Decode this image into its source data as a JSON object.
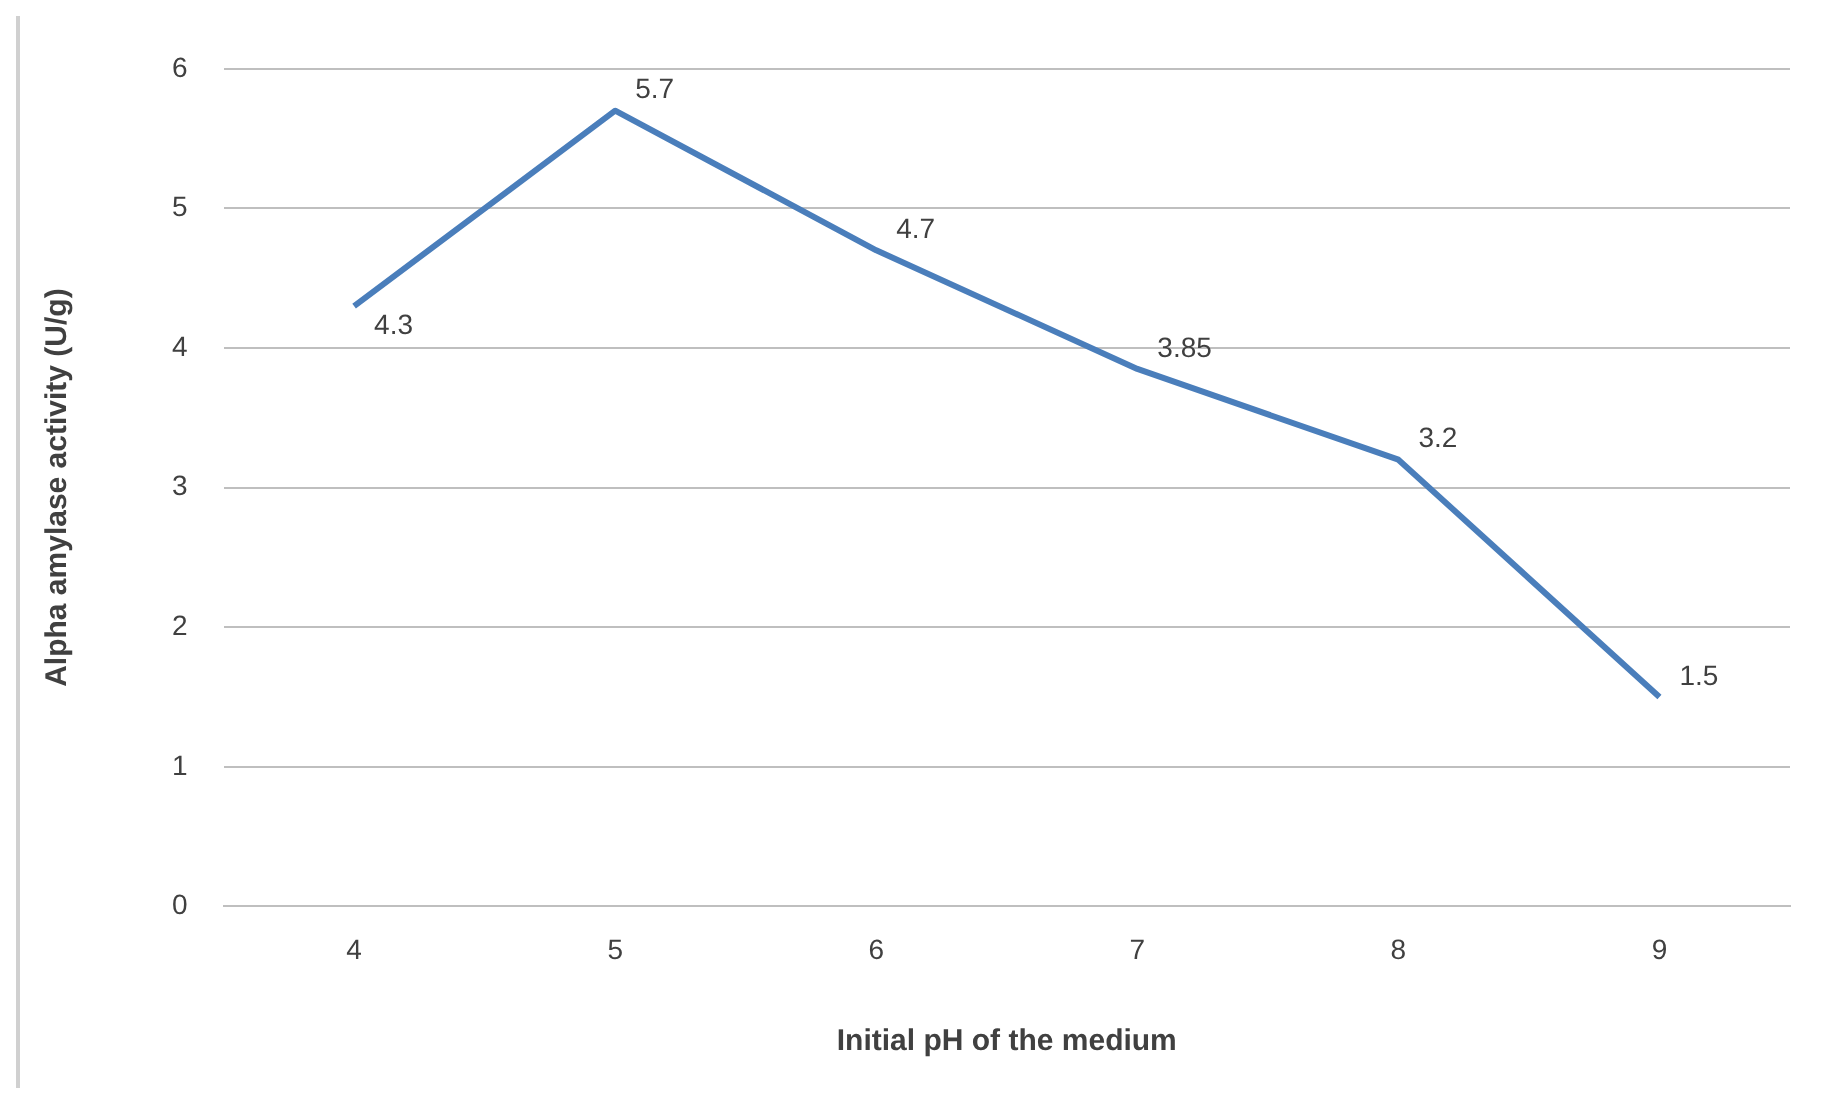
{
  "chart_data": {
    "type": "line",
    "xlabel": "Initial pH of the medium",
    "ylabel": "Alpha amylase activity (U/g)",
    "categories": [
      "4",
      "5",
      "6",
      "7",
      "8",
      "9"
    ],
    "series": [
      {
        "color": "#4a7ebb",
        "values": [
          4.3,
          5.7,
          4.7,
          3.85,
          3.2,
          1.5
        ]
      }
    ],
    "ylim": [
      0,
      6
    ],
    "yticks": [
      0,
      1,
      2,
      3,
      4,
      5,
      6
    ],
    "grid": "y",
    "legend": false,
    "marker": "none",
    "line_style": "solid",
    "data_labels": true
  }
}
